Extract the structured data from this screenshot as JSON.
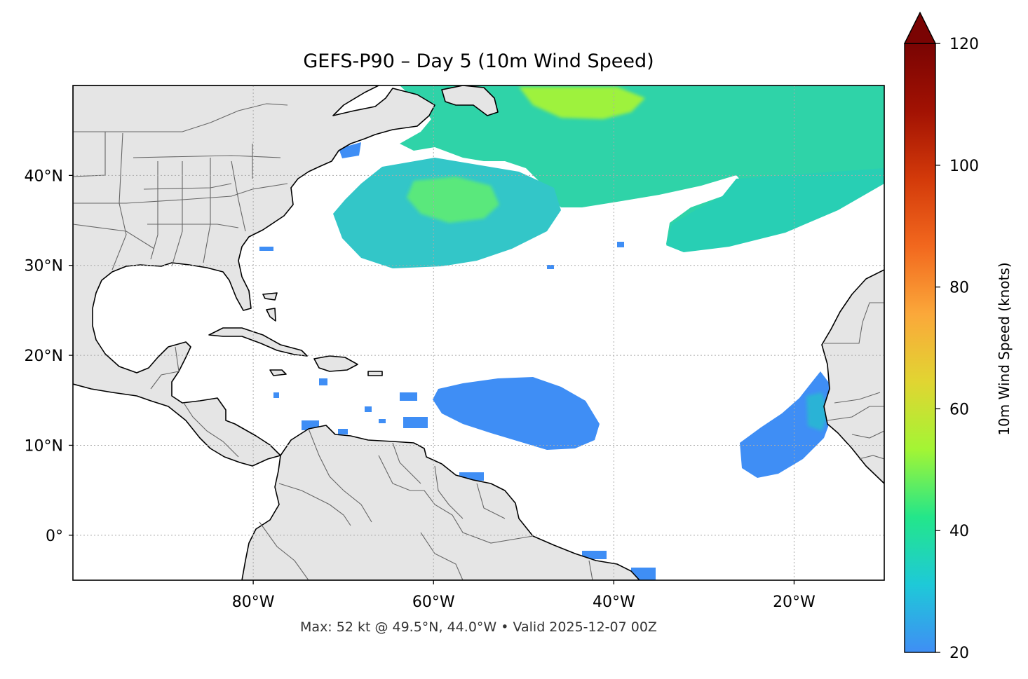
{
  "title": "GEFS-P90 – Day 5 (10m Wind Speed)",
  "footer": "Max: 52 kt @ 49.5°N, 44.0°W • Valid 2025-12-07 00Z",
  "map": {
    "lon_range": [
      -100,
      -10
    ],
    "lat_range": [
      -5,
      50
    ],
    "x_ticks": [
      {
        "lon": -80,
        "label": "80°W"
      },
      {
        "lon": -60,
        "label": "60°W"
      },
      {
        "lon": -40,
        "label": "40°W"
      },
      {
        "lon": -20,
        "label": "20°W"
      }
    ],
    "y_ticks": [
      {
        "lat": 40,
        "label": "40°N"
      },
      {
        "lat": 30,
        "label": "30°N"
      },
      {
        "lat": 20,
        "label": "20°N"
      },
      {
        "lat": 10,
        "label": "10°N"
      },
      {
        "lat": 0,
        "label": "0°"
      }
    ],
    "land_color": "#e5e5e5",
    "coast_color": "#000000",
    "border_color": "#666666",
    "gridlines": "dotted"
  },
  "colorbar": {
    "label": "10m Wind Speed (knots)",
    "min": 20,
    "max": 120,
    "extend": "max",
    "ticks": [
      {
        "value": 20,
        "label": "20"
      },
      {
        "value": 40,
        "label": "40"
      },
      {
        "value": 60,
        "label": "60"
      },
      {
        "value": 80,
        "label": "80"
      },
      {
        "value": 100,
        "label": "100"
      },
      {
        "value": 120,
        "label": "120"
      }
    ],
    "colormap": "turbo",
    "stops": [
      "#3f8ef5",
      "#1ec9d8",
      "#23e68a",
      "#a3f534",
      "#e1d532",
      "#fba83a",
      "#f2681e",
      "#d33a0a",
      "#a21203",
      "#7a0403"
    ]
  },
  "wind_areas": [
    {
      "name": "north-atlantic-upper",
      "speed_kt": 38
    },
    {
      "name": "north-atlantic-max",
      "speed_kt": 52
    },
    {
      "name": "midlatitude-west",
      "speed_kt": 32
    },
    {
      "name": "midlatitude-core",
      "speed_kt": 42
    },
    {
      "name": "midlatitude-east",
      "speed_kt": 34
    },
    {
      "name": "tropical-central",
      "speed_kt": 24
    },
    {
      "name": "tropical-east",
      "speed_kt": 24
    },
    {
      "name": "east-core",
      "speed_kt": 27
    }
  ]
}
